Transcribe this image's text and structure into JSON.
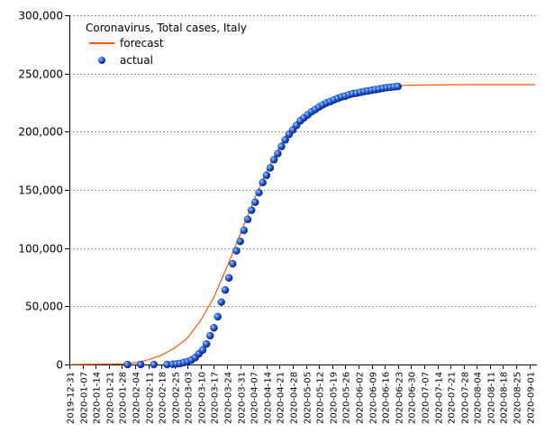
{
  "chart_data": {
    "type": "line",
    "title": "Coronavirus, Total cases, Italy",
    "xlabel": "",
    "ylabel": "",
    "grid": true,
    "legend_position": "top-left",
    "ylim": [
      0,
      300000
    ],
    "y_ticks": [
      0,
      50000,
      100000,
      150000,
      200000,
      250000,
      300000
    ],
    "y_tick_labels": [
      "0",
      "50,000",
      "100,000",
      "150,000",
      "200,000",
      "250,000",
      "300,000"
    ],
    "xlim": [
      "2019-12-31",
      "2020-09-05"
    ],
    "x_ticks": [
      "2019-12-31",
      "2020-01-07",
      "2020-01-14",
      "2020-01-21",
      "2020-01-28",
      "2020-02-04",
      "2020-02-11",
      "2020-02-18",
      "2020-02-25",
      "2020-03-03",
      "2020-03-10",
      "2020-03-17",
      "2020-03-24",
      "2020-03-31",
      "2020-04-07",
      "2020-04-14",
      "2020-04-21",
      "2020-04-28",
      "2020-05-05",
      "2020-05-12",
      "2020-05-19",
      "2020-05-26",
      "2020-06-02",
      "2020-06-09",
      "2020-06-16",
      "2020-06-23",
      "2020-06-30",
      "2020-07-07",
      "2020-07-14",
      "2020-07-21",
      "2020-07-28",
      "2020-08-04",
      "2020-08-11",
      "2020-08-18",
      "2020-08-25",
      "2020-09-01"
    ],
    "series": [
      {
        "name": "forecast",
        "kind": "line",
        "color": "#ff5500",
        "points": [
          [
            "2020-01-01",
            0
          ],
          [
            "2020-01-28",
            500
          ],
          [
            "2020-02-04",
            1500
          ],
          [
            "2020-02-11",
            4000
          ],
          [
            "2020-02-18",
            8000
          ],
          [
            "2020-02-25",
            14000
          ],
          [
            "2020-03-03",
            23000
          ],
          [
            "2020-03-10",
            38000
          ],
          [
            "2020-03-17",
            58000
          ],
          [
            "2020-03-24",
            84000
          ],
          [
            "2020-03-31",
            112000
          ],
          [
            "2020-04-07",
            140000
          ],
          [
            "2020-04-14",
            166000
          ],
          [
            "2020-04-21",
            187000
          ],
          [
            "2020-04-28",
            203000
          ],
          [
            "2020-05-05",
            214000
          ],
          [
            "2020-05-12",
            222000
          ],
          [
            "2020-05-19",
            228000
          ],
          [
            "2020-05-26",
            232000
          ],
          [
            "2020-06-02",
            235000
          ],
          [
            "2020-06-09",
            237000
          ],
          [
            "2020-06-16",
            238500
          ],
          [
            "2020-06-23",
            239500
          ],
          [
            "2020-06-30",
            240000
          ],
          [
            "2020-07-31",
            240500
          ],
          [
            "2020-09-04",
            240500
          ]
        ]
      },
      {
        "name": "actual",
        "kind": "scatter",
        "color": "#1a4fd6",
        "points": [
          [
            "2020-01-31",
            2
          ],
          [
            "2020-02-07",
            3
          ],
          [
            "2020-02-14",
            3
          ],
          [
            "2020-02-21",
            20
          ],
          [
            "2020-02-24",
            229
          ],
          [
            "2020-02-26",
            453
          ],
          [
            "2020-02-28",
            888
          ],
          [
            "2020-03-01",
            1694
          ],
          [
            "2020-03-03",
            2502
          ],
          [
            "2020-03-05",
            3858
          ],
          [
            "2020-03-07",
            5883
          ],
          [
            "2020-03-09",
            9172
          ],
          [
            "2020-03-11",
            12462
          ],
          [
            "2020-03-13",
            17660
          ],
          [
            "2020-03-15",
            24747
          ],
          [
            "2020-03-17",
            31506
          ],
          [
            "2020-03-19",
            41035
          ],
          [
            "2020-03-21",
            53578
          ],
          [
            "2020-03-23",
            63927
          ],
          [
            "2020-03-25",
            74386
          ],
          [
            "2020-03-27",
            86498
          ],
          [
            "2020-03-29",
            97689
          ],
          [
            "2020-03-31",
            105792
          ],
          [
            "2020-04-02",
            115242
          ],
          [
            "2020-04-04",
            124632
          ],
          [
            "2020-04-06",
            132547
          ],
          [
            "2020-04-08",
            139422
          ],
          [
            "2020-04-10",
            147577
          ],
          [
            "2020-04-12",
            156363
          ],
          [
            "2020-04-14",
            162488
          ],
          [
            "2020-04-16",
            168941
          ],
          [
            "2020-04-18",
            175925
          ],
          [
            "2020-04-20",
            181228
          ],
          [
            "2020-04-22",
            187327
          ],
          [
            "2020-04-24",
            192994
          ],
          [
            "2020-04-26",
            197675
          ],
          [
            "2020-04-28",
            201505
          ],
          [
            "2020-04-30",
            205463
          ],
          [
            "2020-05-02",
            209328
          ],
          [
            "2020-05-04",
            211938
          ],
          [
            "2020-05-06",
            214457
          ],
          [
            "2020-05-08",
            217185
          ],
          [
            "2020-05-10",
            219070
          ],
          [
            "2020-05-12",
            221216
          ],
          [
            "2020-05-14",
            223096
          ],
          [
            "2020-05-16",
            224760
          ],
          [
            "2020-05-18",
            225886
          ],
          [
            "2020-05-20",
            227364
          ],
          [
            "2020-05-22",
            228658
          ],
          [
            "2020-05-24",
            229858
          ],
          [
            "2020-05-26",
            230555
          ],
          [
            "2020-05-28",
            231732
          ],
          [
            "2020-05-30",
            232664
          ],
          [
            "2020-06-01",
            233019
          ],
          [
            "2020-06-03",
            233836
          ],
          [
            "2020-06-05",
            234531
          ],
          [
            "2020-06-07",
            234998
          ],
          [
            "2020-06-09",
            235561
          ],
          [
            "2020-06-11",
            236142
          ],
          [
            "2020-06-13",
            236651
          ],
          [
            "2020-06-15",
            237290
          ],
          [
            "2020-06-17",
            237828
          ],
          [
            "2020-06-19",
            238159
          ],
          [
            "2020-06-21",
            238499
          ],
          [
            "2020-06-23",
            238833
          ]
        ]
      }
    ]
  }
}
